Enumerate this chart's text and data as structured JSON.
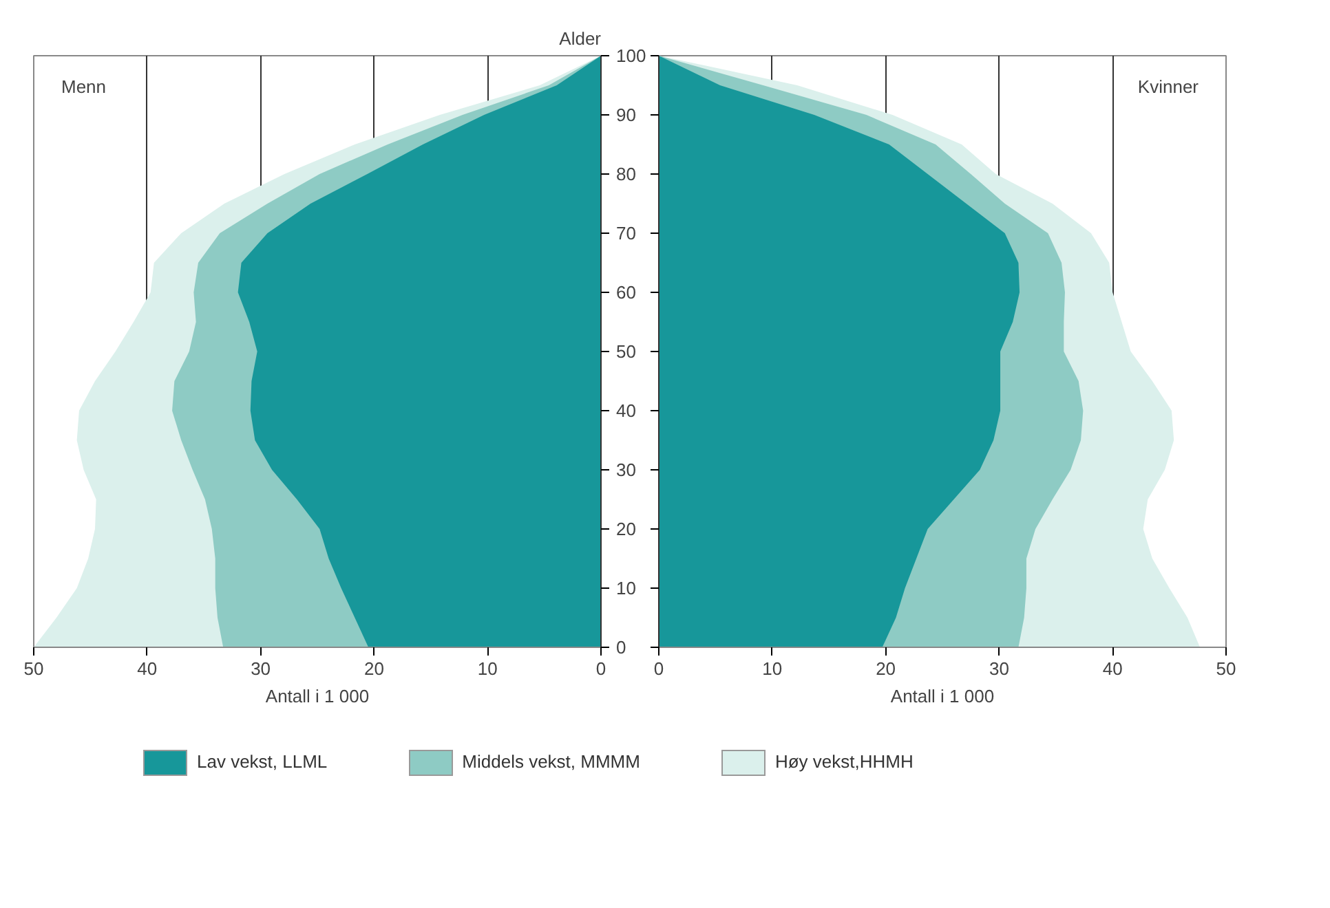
{
  "chart_data": [
    {
      "type": "area",
      "orientation": "horizontal",
      "title": "Menn",
      "ylabel": "Alder",
      "xlabel": "Antall i 1 000",
      "x": [
        0,
        5,
        10,
        15,
        20,
        25,
        30,
        35,
        40,
        45,
        50,
        55,
        60,
        65,
        70,
        75,
        80,
        85,
        90,
        95,
        100
      ],
      "series": [
        {
          "name": "Lav vekst, LLML",
          "color": "#17979a",
          "values": [
            20.5,
            21.7,
            22.9,
            24,
            24.8,
            26.8,
            29,
            30.5,
            30.9,
            30.8,
            30.3,
            31,
            32,
            31.7,
            29.4,
            25.6,
            20.6,
            15.7,
            10.3,
            3.9,
            0
          ]
        },
        {
          "name": "Middels vekst, MMMM",
          "color": "#8ecbc4",
          "values": [
            33.3,
            33.8,
            34,
            34,
            34.3,
            34.9,
            36,
            37,
            37.8,
            37.6,
            36.3,
            35.7,
            35.9,
            35.5,
            33.6,
            29.4,
            24.8,
            18.8,
            12.2,
            4.6,
            0
          ]
        },
        {
          "name": "Høy vekst,HHMH",
          "color": "#dbf0ec",
          "values": [
            50,
            48,
            46.2,
            45.2,
            44.6,
            44.5,
            45.6,
            46.2,
            46,
            44.6,
            42.8,
            41.2,
            39.7,
            39.4,
            37,
            33.2,
            27.9,
            21.7,
            14.2,
            5.4,
            0
          ]
        }
      ],
      "xlim": [
        50,
        0
      ],
      "xticks": [
        50,
        40,
        30,
        20,
        10,
        0
      ],
      "ylim": [
        0,
        100
      ],
      "yticks": [
        0,
        10,
        20,
        30,
        40,
        50,
        60,
        70,
        80,
        90,
        100
      ],
      "grid": "x",
      "legend": "bottom"
    },
    {
      "type": "area",
      "orientation": "horizontal",
      "title": "Kvinner",
      "xlabel": "Antall i 1 000",
      "x": [
        0,
        5,
        10,
        15,
        20,
        25,
        30,
        35,
        40,
        45,
        50,
        55,
        60,
        65,
        70,
        75,
        80,
        85,
        90,
        95,
        100
      ],
      "series": [
        {
          "color": "#17979a",
          "values": [
            19.7,
            20.9,
            21.7,
            22.7,
            23.7,
            26,
            28.3,
            29.5,
            30.1,
            30.1,
            30.1,
            31.2,
            31.8,
            31.7,
            30.5,
            27.1,
            23.7,
            20.3,
            13.7,
            5.4,
            0
          ]
        },
        {
          "color": "#8ecbc4",
          "values": [
            31.7,
            32.2,
            32.4,
            32.4,
            33.2,
            34.7,
            36.3,
            37.2,
            37.4,
            37,
            35.7,
            35.7,
            35.8,
            35.5,
            34.3,
            30.5,
            27.5,
            24.4,
            18.3,
            9.2,
            0
          ]
        },
        {
          "color": "#dbf0ec",
          "values": [
            47.7,
            46.6,
            45,
            43.5,
            42.7,
            43.1,
            44.6,
            45.4,
            45.2,
            43.5,
            41.6,
            40.8,
            40,
            39.7,
            38.1,
            34.7,
            29.7,
            26.7,
            20.6,
            12.2,
            0
          ]
        }
      ],
      "xlim": [
        0,
        50
      ],
      "xticks": [
        0,
        10,
        20,
        30,
        40,
        50
      ],
      "ylim": [
        0,
        100
      ],
      "yticks": [
        0,
        10,
        20,
        30,
        40,
        50,
        60,
        70,
        80,
        90,
        100
      ],
      "grid": "x",
      "tick_labels": "x"
    }
  ]
}
